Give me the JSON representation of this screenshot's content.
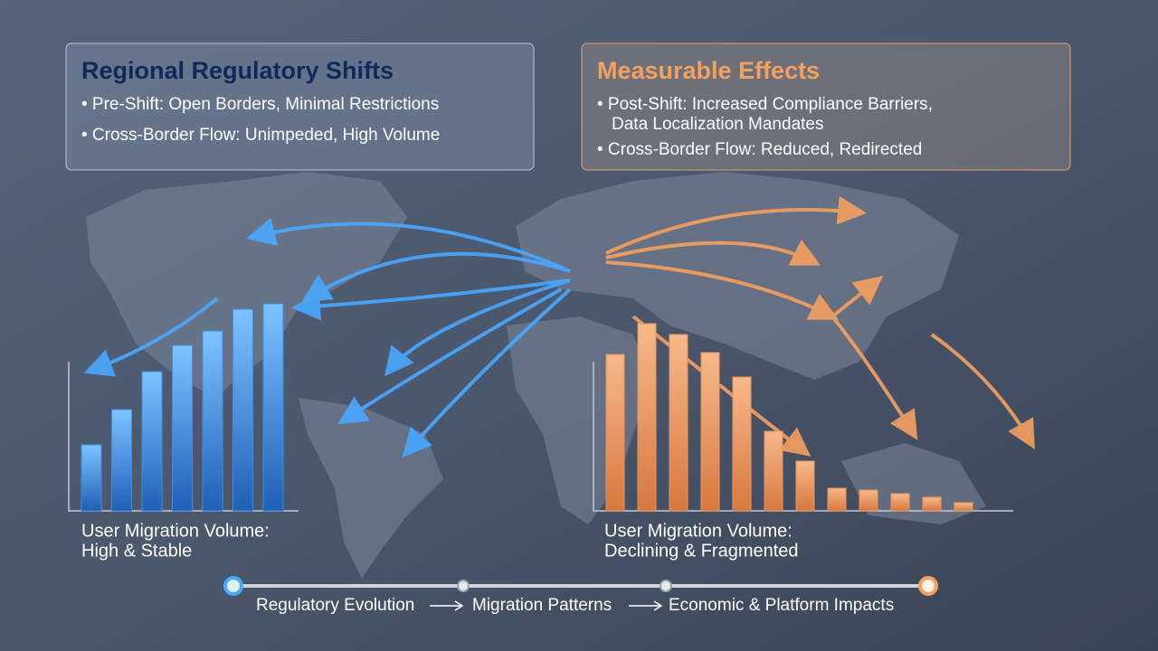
{
  "panels": [
    {
      "title": "Regional Regulatory Shifts",
      "bullets": [
        [
          "• Pre-Shift: Open Borders, Minimal Restrictions"
        ],
        [
          "• Cross-Border Flow: Unimpeded, High Volume"
        ]
      ]
    },
    {
      "title": "Measurable Effects",
      "bullets": [
        [
          "• Post-Shift: Increased Compliance Barriers,",
          "Data Localization Mandates"
        ],
        [
          "• Cross-Border Flow: Reduced, Redirected"
        ]
      ]
    }
  ],
  "timeline": {
    "steps": [
      "Regulatory Evolution",
      "Migration Patterns",
      "Economic & Platform Impacts"
    ]
  },
  "chart_data": [
    {
      "type": "bar",
      "title": "User Migration Volume:",
      "subtitle": "High & Stable",
      "color": "#3b8ee0",
      "values": [
        73,
        112,
        154,
        183,
        199,
        223,
        229
      ]
    },
    {
      "type": "bar",
      "title": "User Migration Volume:",
      "subtitle": "Declining & Fragmented",
      "color": "#e8945a",
      "values": [
        173,
        207,
        195,
        175,
        148,
        88,
        55,
        25,
        23,
        19,
        15,
        9
      ]
    }
  ]
}
